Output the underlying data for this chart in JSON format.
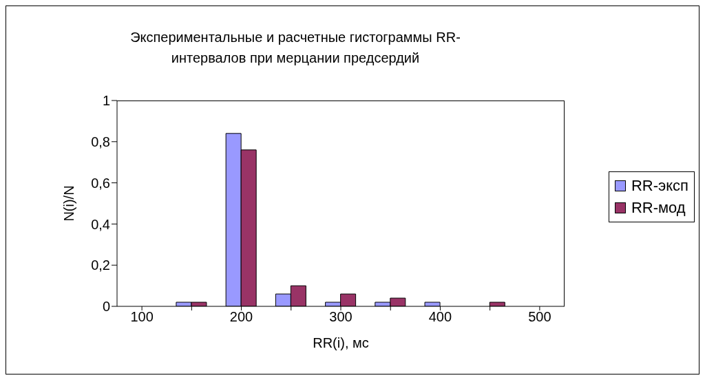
{
  "chart_data": {
    "type": "bar",
    "title": "Экспериментальные и расчетные гистограммы RR-интервалов при мерцании предсердий",
    "xlabel": "RR(i), мс",
    "ylabel": "N(i)/N",
    "categories": [
      "100",
      null,
      "200",
      null,
      "300",
      null,
      "400",
      null,
      "500"
    ],
    "series": [
      {
        "name": "RR-эксп",
        "color": "#9999ff",
        "values": [
          0,
          0.02,
          0.84,
          0.06,
          0.02,
          0.02,
          0.02,
          0,
          0
        ]
      },
      {
        "name": "RR-мод",
        "color": "#993366",
        "values": [
          0,
          0.02,
          0.76,
          0.1,
          0.06,
          0.04,
          0,
          0.02,
          0
        ]
      }
    ],
    "ylim": [
      0,
      1
    ],
    "yticks": [
      0,
      {
        "value": 0.2,
        "label": "0,2"
      },
      {
        "value": 0.4,
        "label": "0,4"
      },
      {
        "value": 0.6,
        "label": "0,6"
      },
      {
        "value": 0.8,
        "label": "0,8"
      },
      1
    ],
    "grid": false,
    "legend": "right"
  }
}
